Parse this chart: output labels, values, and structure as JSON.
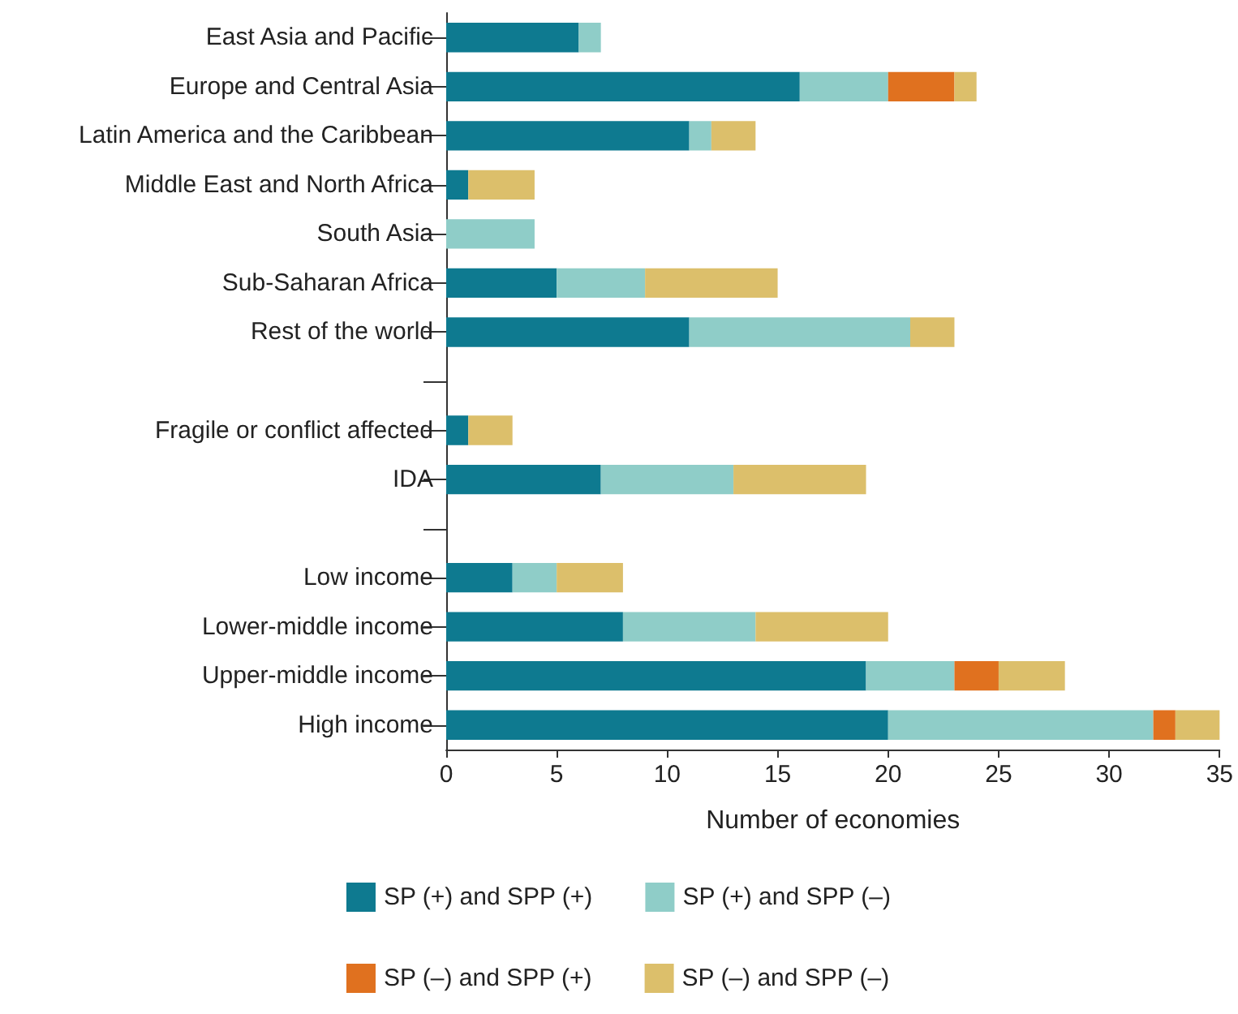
{
  "chart_data": {
    "type": "bar",
    "orientation": "horizontal",
    "stacked": true,
    "xlabel": "Number of economies",
    "categories": [
      "East Asia and Pacific",
      "Europe and Central Asia",
      "Latin America and the Caribbean",
      "Middle East and North Africa",
      "South Asia",
      "Sub-Saharan Africa",
      "Rest of the world",
      null,
      "Fragile or conflict affected",
      "IDA",
      null,
      "Low income",
      "Lower-middle income",
      "Upper-middle income",
      "High income"
    ],
    "series": [
      {
        "name": "SP (+) and SPP (+)",
        "color": "#0e7a90",
        "values": [
          6,
          16,
          11,
          1,
          null,
          5,
          11,
          null,
          1,
          7,
          null,
          3,
          8,
          19,
          20
        ]
      },
      {
        "name": "SP (+) and SPP (–)",
        "color": "#8fcdc8",
        "values": [
          1,
          4,
          1,
          null,
          4,
          4,
          10,
          null,
          null,
          6,
          null,
          2,
          6,
          4,
          12
        ]
      },
      {
        "name": "SP (–) and SPP (+)",
        "color": "#e0711f",
        "values": [
          null,
          3,
          null,
          null,
          null,
          null,
          null,
          null,
          null,
          null,
          null,
          null,
          null,
          2,
          1
        ]
      },
      {
        "name": "SP (–) and SPP (–)",
        "color": "#dcbf6b",
        "values": [
          null,
          1,
          2,
          3,
          null,
          6,
          2,
          null,
          2,
          6,
          null,
          3,
          6,
          3,
          2
        ]
      }
    ],
    "xlim": [
      0,
      35
    ],
    "xticks": [
      0,
      5,
      10,
      15,
      20,
      25,
      30,
      35
    ],
    "legend": "bottom"
  }
}
